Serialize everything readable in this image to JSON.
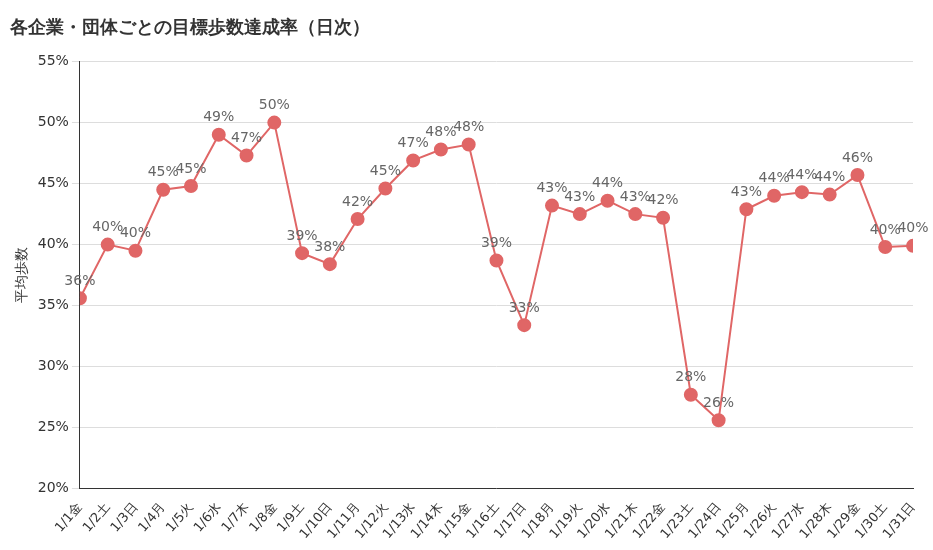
{
  "chart_data": {
    "type": "line",
    "title": "各企業・団体ごとの目標歩数達成率（日次）",
    "y_label": "平均歩数",
    "categories": [
      "1/1金",
      "1/2土",
      "1/3日",
      "1/4月",
      "1/5火",
      "1/6水",
      "1/7木",
      "1/8金",
      "1/9土",
      "1/10日",
      "1/11月",
      "1/12火",
      "1/13水",
      "1/14木",
      "1/15金",
      "1/16土",
      "1/17日",
      "1/18月",
      "1/19火",
      "1/20水",
      "1/21木",
      "1/22金",
      "1/23土",
      "1/24日",
      "1/25月",
      "1/26火",
      "1/27水",
      "1/28木",
      "1/29金",
      "1/30土",
      "1/31日"
    ],
    "values": [
      35.6,
      40.0,
      39.5,
      44.5,
      44.8,
      49.0,
      47.3,
      50.0,
      39.3,
      38.4,
      42.1,
      44.6,
      46.9,
      47.8,
      48.2,
      38.7,
      33.4,
      43.2,
      42.5,
      43.6,
      42.5,
      42.2,
      27.7,
      25.6,
      42.9,
      44.0,
      44.3,
      44.1,
      45.7,
      39.8,
      39.9
    ],
    "value_labels": [
      "36%",
      "40%",
      "40%",
      "45%",
      "45%",
      "49%",
      "47%",
      "50%",
      "39%",
      "38%",
      "42%",
      "45%",
      "47%",
      "48%",
      "48%",
      "39%",
      "33%",
      "43%",
      "43%",
      "44%",
      "43%",
      "42%",
      "28%",
      "26%",
      "43%",
      "44%",
      "44%",
      "44%",
      "46%",
      "40%",
      "40%"
    ],
    "color": "#e06666",
    "marker": "circle",
    "line_style": "solid",
    "ylim": [
      20,
      55
    ],
    "yticks": [
      {
        "value": 20,
        "label": "20%"
      },
      {
        "value": 25,
        "label": "25%"
      },
      {
        "value": 30,
        "label": "30%"
      },
      {
        "value": 35,
        "label": "35%"
      },
      {
        "value": 40,
        "label": "40%"
      },
      {
        "value": 45,
        "label": "45%"
      },
      {
        "value": 50,
        "label": "50%"
      },
      {
        "value": 55,
        "label": "55%"
      }
    ],
    "grid": true,
    "data_labels": true
  }
}
